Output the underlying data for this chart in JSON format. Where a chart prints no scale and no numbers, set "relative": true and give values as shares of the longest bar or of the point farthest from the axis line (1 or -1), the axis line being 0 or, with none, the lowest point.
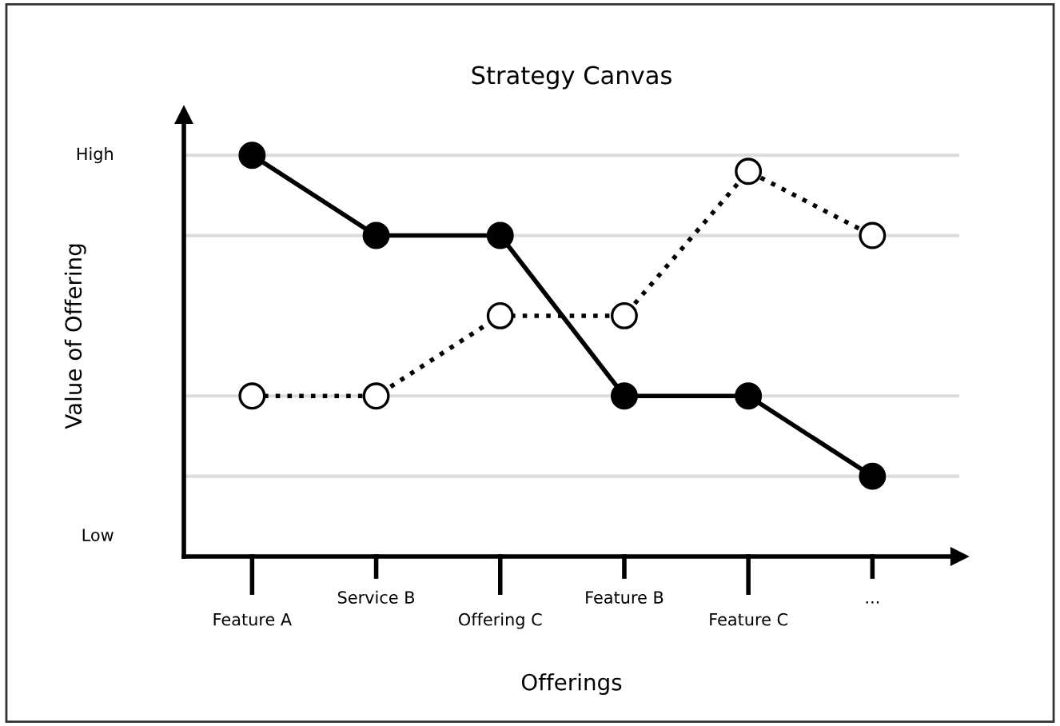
{
  "chart_data": {
    "type": "line",
    "title": "Strategy Canvas",
    "xlabel": "Offerings",
    "ylabel": "Value of Offering",
    "categories": [
      "Feature A",
      "Service B",
      "Offering C",
      "Feature B",
      "Feature C",
      "..."
    ],
    "relative": true,
    "grid": true,
    "marker": "circle",
    "legend": false,
    "annotations": [
      "High",
      "Low"
    ],
    "series": [
      {
        "color": "#000000",
        "line_style": "solid",
        "values": [
          1.0,
          0.8,
          0.8,
          0.4,
          0.4,
          0.2
        ]
      },
      {
        "color": "#000000",
        "line_style": "dotted",
        "values": [
          0.4,
          0.4,
          0.6,
          0.6,
          0.96,
          0.8
        ]
      }
    ]
  }
}
